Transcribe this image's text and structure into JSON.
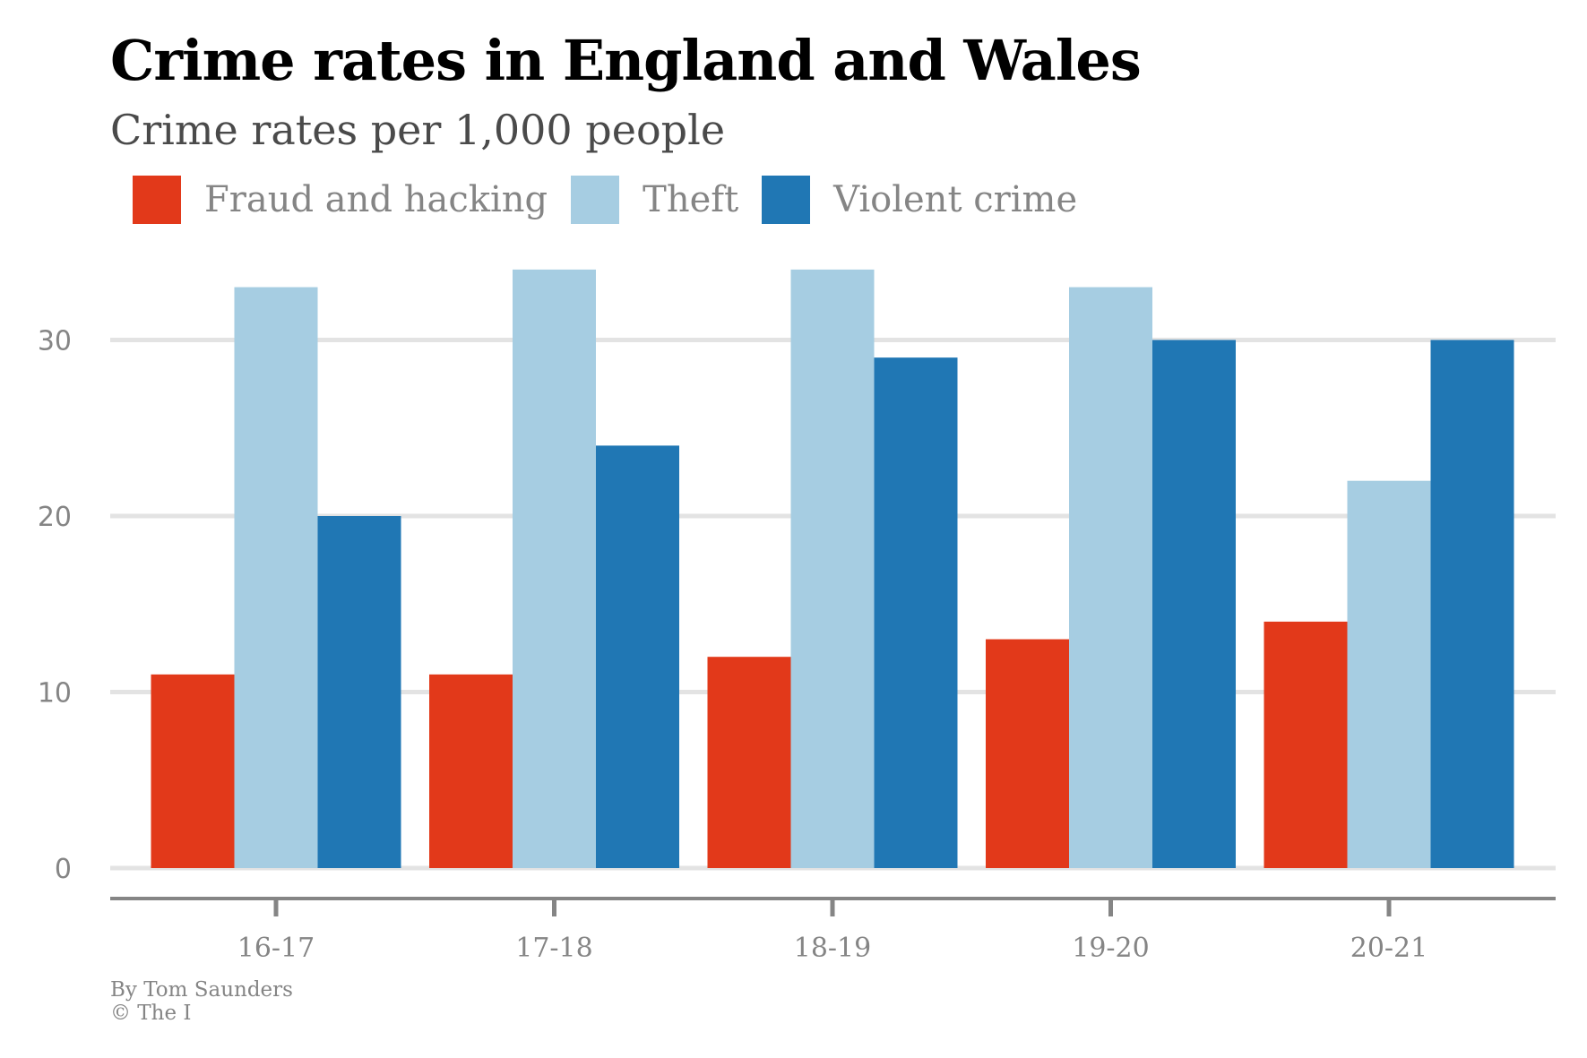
{
  "header": {
    "title": "Crime rates in England and Wales",
    "subtitle": "Crime rates per 1,000 people"
  },
  "credits": {
    "author": "By Tom Saunders",
    "copyright": "© The I"
  },
  "colors": {
    "fraud": "#e2391a",
    "theft": "#a6cde2",
    "violent": "#2077b4",
    "grid": "#e3e3e3",
    "axis": "#858585",
    "text_muted": "#858585"
  },
  "chart_data": {
    "type": "bar",
    "title": "Crime rates in England and Wales",
    "subtitle": "Crime rates per 1,000 people",
    "xlabel": "",
    "ylabel": "",
    "categories": [
      "16-17",
      "17-18",
      "18-19",
      "19-20",
      "20-21"
    ],
    "series": [
      {
        "name": "Fraud and hacking",
        "color": "#e2391a",
        "values": [
          11,
          11,
          12,
          13,
          14
        ]
      },
      {
        "name": "Theft",
        "color": "#a6cde2",
        "values": [
          33,
          34,
          34,
          33,
          22
        ]
      },
      {
        "name": "Violent crime",
        "color": "#2077b4",
        "values": [
          20,
          24,
          29,
          30,
          30
        ]
      }
    ],
    "yticks": [
      0,
      10,
      20,
      30
    ],
    "ytick_labels": [
      "0",
      "10",
      "20",
      "30"
    ],
    "ylim": [
      0,
      34
    ],
    "grid": true,
    "legend_position": "top-left"
  }
}
